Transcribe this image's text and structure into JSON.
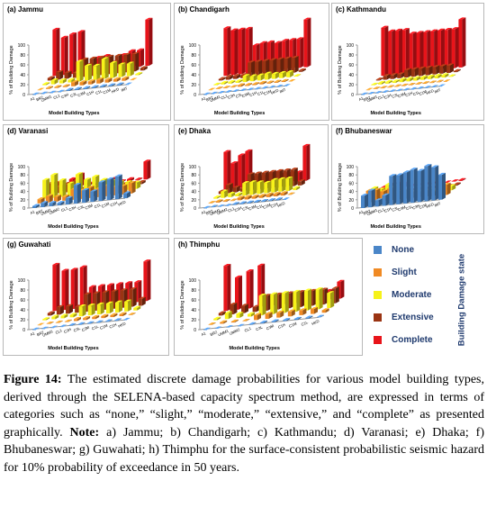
{
  "legend": {
    "title": "Building Damage state",
    "items": [
      {
        "label": "None",
        "color": "#4a86c8"
      },
      {
        "label": "Slight",
        "color": "#f08a24"
      },
      {
        "label": "Moderate",
        "color": "#f6f21a"
      },
      {
        "label": "Extensive",
        "color": "#9a3413"
      },
      {
        "label": "Complete",
        "color": "#e8141a"
      }
    ]
  },
  "caption": {
    "figure_label": "Figure 14:",
    "text_1": " The estimated discrete damage probabilities for various model building types, derived through the SELENA-based capacity spectrum method, are expressed in terms of categories such as “none,” “slight,” “moderate,” “extensive,” and “complete” as presented graphically. ",
    "note_label": "Note:",
    "text_2": " a) Jammu; b) Chandigarh; c) Kathmandu; d) Varanasi; e) Dhaka; f) Bhubaneswar; g) Guwahati; h) Thimphu for the surface-consistent probabilistic seismic hazard for 10% probability of exceedance in 50 years."
  },
  "chart_data": [
    {
      "panel": "(a) Jammu",
      "type": "bar",
      "ylabel": "% of Building Damage",
      "xlabel": "Model Building Types",
      "ylim": [
        0,
        100
      ],
      "yticks": [
        0,
        20,
        40,
        60,
        80,
        100
      ],
      "categories": [
        "A1",
        "BR2",
        "UMM1",
        "CL1",
        "C3H",
        "C3L",
        "C3M",
        "C1H",
        "C1L",
        "C1M",
        "HKD",
        "IMT"
      ],
      "series": [
        {
          "name": "None",
          "values": [
            0,
            0,
            0,
            0,
            2,
            2,
            2,
            2,
            2,
            2,
            2,
            0
          ]
        },
        {
          "name": "Slight",
          "values": [
            0,
            2,
            2,
            2,
            8,
            6,
            6,
            8,
            6,
            5,
            5,
            0
          ]
        },
        {
          "name": "Moderate",
          "values": [
            2,
            8,
            6,
            5,
            40,
            30,
            28,
            40,
            30,
            25,
            25,
            2
          ]
        },
        {
          "name": "Extensive",
          "values": [
            5,
            15,
            12,
            10,
            35,
            35,
            35,
            35,
            35,
            35,
            35,
            5
          ]
        },
        {
          "name": "Complete",
          "values": [
            93,
            75,
            80,
            83,
            15,
            27,
            29,
            15,
            27,
            33,
            33,
            93
          ]
        }
      ]
    },
    {
      "panel": "(b) Chandigarh",
      "type": "bar",
      "ylabel": "% of Building Damage",
      "xlabel": "Model Building Types",
      "ylim": [
        0,
        100
      ],
      "yticks": [
        0,
        20,
        40,
        60,
        80,
        100
      ],
      "categories": [
        "A1",
        "BR2",
        "UMM1",
        "CL1",
        "C3H",
        "C3L",
        "C3M",
        "C1H",
        "C1L",
        "C1M",
        "HKD",
        "IMT"
      ],
      "series": [
        {
          "name": "None",
          "values": [
            0,
            0,
            0,
            0,
            0,
            0,
            0,
            0,
            0,
            0,
            0,
            0
          ]
        },
        {
          "name": "Slight",
          "values": [
            0,
            1,
            1,
            1,
            3,
            2,
            2,
            3,
            2,
            2,
            2,
            0
          ]
        },
        {
          "name": "Moderate",
          "values": [
            1,
            3,
            3,
            3,
            12,
            10,
            10,
            12,
            10,
            10,
            10,
            1
          ]
        },
        {
          "name": "Extensive",
          "values": [
            3,
            6,
            6,
            6,
            30,
            30,
            30,
            30,
            30,
            30,
            30,
            3
          ]
        },
        {
          "name": "Complete",
          "values": [
            96,
            90,
            90,
            90,
            55,
            58,
            58,
            55,
            58,
            58,
            58,
            96
          ]
        }
      ]
    },
    {
      "panel": "(c) Kathmandu",
      "type": "bar",
      "ylabel": "% of Building Damage",
      "xlabel": "Model Building Types",
      "ylim": [
        0,
        100
      ],
      "yticks": [
        0,
        20,
        40,
        60,
        80,
        100
      ],
      "categories": [
        "A1",
        "BR2",
        "UMM1",
        "CL1",
        "C3H",
        "C3L",
        "C3M",
        "C1H",
        "C1L",
        "C1M",
        "HKD",
        "IMT"
      ],
      "series": [
        {
          "name": "None",
          "values": [
            0,
            0,
            0,
            0,
            0,
            0,
            0,
            0,
            0,
            0,
            0,
            0
          ]
        },
        {
          "name": "Slight",
          "values": [
            0,
            1,
            1,
            1,
            1,
            1,
            1,
            1,
            1,
            1,
            1,
            0
          ]
        },
        {
          "name": "Moderate",
          "values": [
            1,
            3,
            3,
            3,
            5,
            5,
            5,
            5,
            5,
            5,
            5,
            1
          ]
        },
        {
          "name": "Extensive",
          "values": [
            2,
            8,
            8,
            8,
            15,
            15,
            15,
            15,
            15,
            15,
            15,
            2
          ]
        },
        {
          "name": "Complete",
          "values": [
            97,
            88,
            88,
            88,
            79,
            79,
            79,
            79,
            79,
            79,
            79,
            97
          ]
        }
      ]
    },
    {
      "panel": "(d) Varanasi",
      "type": "bar",
      "ylabel": "% of Building Damage",
      "xlabel": "Model Building Types",
      "ylim": [
        0,
        100
      ],
      "yticks": [
        0,
        20,
        40,
        60,
        80,
        100
      ],
      "categories": [
        "A1",
        "BR2",
        "UMM1",
        "UMM2",
        "CL1",
        "C3H",
        "C3L",
        "C3M",
        "C1L",
        "C1M",
        "C1H",
        "HKD"
      ],
      "series": [
        {
          "name": "None",
          "values": [
            5,
            10,
            8,
            6,
            15,
            45,
            30,
            25,
            45,
            50,
            55,
            12
          ]
        },
        {
          "name": "Slight",
          "values": [
            10,
            15,
            12,
            10,
            25,
            20,
            25,
            20,
            25,
            20,
            20,
            25
          ]
        },
        {
          "name": "Moderate",
          "values": [
            45,
            55,
            40,
            30,
            50,
            35,
            40,
            30,
            25,
            20,
            18,
            15
          ]
        },
        {
          "name": "Extensive",
          "values": [
            25,
            15,
            20,
            25,
            5,
            3,
            3,
            15,
            3,
            5,
            5,
            5
          ]
        },
        {
          "name": "Complete",
          "values": [
            15,
            5,
            20,
            29,
            5,
            2,
            2,
            10,
            2,
            5,
            2,
            43
          ]
        }
      ]
    },
    {
      "panel": "(e) Dhaka",
      "type": "bar",
      "ylabel": "% of Building Damage",
      "xlabel": "Model Building Types",
      "ylim": [
        0,
        100
      ],
      "yticks": [
        0,
        20,
        40,
        60,
        80,
        100
      ],
      "categories": [
        "A1",
        "BR2",
        "UMM1",
        "UMM2",
        "CL1",
        "C3H",
        "C3L",
        "C3M",
        "C1L",
        "C1M",
        "C1H",
        "HKD"
      ],
      "series": [
        {
          "name": "None",
          "values": [
            0,
            1,
            0,
            0,
            2,
            2,
            2,
            2,
            2,
            2,
            2,
            0
          ]
        },
        {
          "name": "Slight",
          "values": [
            1,
            3,
            2,
            1,
            6,
            6,
            5,
            5,
            6,
            6,
            6,
            1
          ]
        },
        {
          "name": "Moderate",
          "values": [
            3,
            15,
            8,
            5,
            30,
            30,
            28,
            25,
            30,
            30,
            30,
            5
          ]
        },
        {
          "name": "Extensive",
          "values": [
            6,
            20,
            12,
            8,
            40,
            40,
            40,
            40,
            40,
            40,
            40,
            10
          ]
        },
        {
          "name": "Complete",
          "values": [
            90,
            61,
            78,
            86,
            22,
            22,
            25,
            28,
            22,
            22,
            22,
            84
          ]
        }
      ]
    },
    {
      "panel": "(f) Bhubaneswar",
      "type": "bar",
      "ylabel": "% of Building Damage",
      "xlabel": "Model Building Types",
      "ylim": [
        0,
        100
      ],
      "yticks": [
        0,
        20,
        40,
        60,
        80,
        100
      ],
      "categories": [
        "A1",
        "BR2",
        "UMM1",
        "CL1",
        "C1H",
        "C3L",
        "C3M",
        "C1L",
        "C3H",
        "C1M",
        "HKD",
        "IMT"
      ],
      "series": [
        {
          "name": "None",
          "values": [
            30,
            40,
            15,
            25,
            70,
            70,
            75,
            80,
            75,
            85,
            80,
            60
          ]
        },
        {
          "name": "Slight",
          "values": [
            30,
            30,
            25,
            30,
            20,
            20,
            15,
            12,
            15,
            10,
            12,
            25
          ]
        },
        {
          "name": "Moderate",
          "values": [
            25,
            20,
            30,
            25,
            8,
            8,
            8,
            6,
            8,
            4,
            6,
            10
          ]
        },
        {
          "name": "Extensive",
          "values": [
            10,
            7,
            20,
            12,
            1,
            1,
            1,
            1,
            1,
            1,
            1,
            3
          ]
        },
        {
          "name": "Complete",
          "values": [
            5,
            3,
            10,
            8,
            1,
            1,
            1,
            1,
            1,
            0,
            1,
            2
          ]
        }
      ]
    },
    {
      "panel": "(g) Guwahati",
      "type": "bar",
      "ylabel": "% of Building Damage",
      "xlabel": "Model Building Types",
      "ylim": [
        0,
        100
      ],
      "yticks": [
        0,
        20,
        40,
        60,
        80,
        100
      ],
      "categories": [
        "A1",
        "BR2",
        "UMM1",
        "CL1",
        "C3H",
        "C3L",
        "C3M",
        "C1L",
        "C1M",
        "C1H",
        "HKD"
      ],
      "series": [
        {
          "name": "None",
          "values": [
            0,
            0,
            0,
            0,
            1,
            1,
            1,
            1,
            1,
            1,
            0
          ]
        },
        {
          "name": "Slight",
          "values": [
            0,
            1,
            1,
            1,
            4,
            4,
            4,
            4,
            4,
            4,
            1
          ]
        },
        {
          "name": "Moderate",
          "values": [
            2,
            5,
            5,
            5,
            20,
            20,
            20,
            20,
            20,
            20,
            5
          ]
        },
        {
          "name": "Extensive",
          "values": [
            5,
            15,
            15,
            12,
            35,
            35,
            35,
            35,
            35,
            35,
            14
          ]
        },
        {
          "name": "Complete",
          "values": [
            93,
            79,
            79,
            82,
            40,
            40,
            40,
            40,
            40,
            40,
            80
          ]
        }
      ]
    },
    {
      "panel": "(h) Thimphu",
      "type": "bar",
      "ylabel": "% of Building Damage",
      "xlabel": "Model Building Types",
      "ylim": [
        0,
        100
      ],
      "yticks": [
        0,
        20,
        40,
        60,
        80,
        100
      ],
      "categories": [
        "A1",
        "BR2",
        "UMM1",
        "UMM2",
        "CL1",
        "C3L",
        "C3M",
        "C1H",
        "C1M",
        "C1L",
        "HKD"
      ],
      "series": [
        {
          "name": "None",
          "values": [
            0,
            0,
            0,
            0,
            1,
            2,
            2,
            2,
            2,
            2,
            1
          ]
        },
        {
          "name": "Slight",
          "values": [
            1,
            3,
            2,
            1,
            10,
            10,
            10,
            10,
            10,
            10,
            5
          ]
        },
        {
          "name": "Moderate",
          "values": [
            3,
            12,
            8,
            5,
            40,
            40,
            40,
            40,
            40,
            40,
            30
          ]
        },
        {
          "name": "Extensive",
          "values": [
            5,
            20,
            15,
            10,
            30,
            30,
            30,
            30,
            30,
            30,
            30
          ]
        },
        {
          "name": "Complete",
          "values": [
            91,
            65,
            75,
            84,
            19,
            18,
            18,
            18,
            18,
            18,
            34
          ]
        }
      ]
    }
  ]
}
